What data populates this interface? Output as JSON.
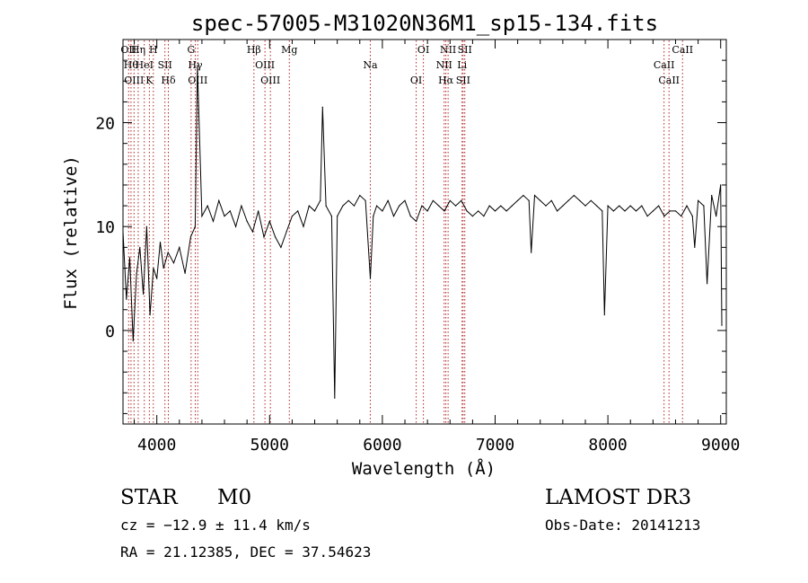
{
  "chart_data": {
    "type": "line",
    "title": "spec-57005-M31020N36M1_sp15-134.fits",
    "xlabel": "Wavelength (Å)",
    "ylabel": "Flux (relative)",
    "xlim": [
      3700,
      9050
    ],
    "ylim": [
      -9,
      28
    ],
    "x_ticks": [
      4000,
      5000,
      6000,
      7000,
      8000,
      9000
    ],
    "y_ticks": [
      0,
      10,
      20
    ],
    "x_tick_labels": [
      "4000",
      "5000",
      "6000",
      "7000",
      "8000",
      "9000"
    ],
    "y_tick_labels": [
      "0",
      "10",
      "20"
    ],
    "grid": false,
    "series": [
      {
        "name": "spectrum",
        "x": [
          3700,
          3730,
          3760,
          3790,
          3820,
          3850,
          3880,
          3910,
          3940,
          3970,
          4000,
          4030,
          4060,
          4100,
          4150,
          4200,
          4250,
          4300,
          4340,
          4360,
          4400,
          4450,
          4500,
          4550,
          4600,
          4650,
          4700,
          4750,
          4800,
          4850,
          4900,
          4950,
          5000,
          5050,
          5100,
          5150,
          5200,
          5250,
          5300,
          5350,
          5400,
          5450,
          5470,
          5500,
          5550,
          5577,
          5600,
          5650,
          5700,
          5750,
          5800,
          5850,
          5893,
          5920,
          5950,
          6000,
          6050,
          6100,
          6150,
          6200,
          6250,
          6300,
          6350,
          6400,
          6450,
          6500,
          6550,
          6600,
          6650,
          6700,
          6750,
          6800,
          6850,
          6900,
          6950,
          7000,
          7050,
          7100,
          7150,
          7200,
          7250,
          7300,
          7320,
          7350,
          7400,
          7450,
          7500,
          7550,
          7600,
          7650,
          7700,
          7750,
          7800,
          7850,
          7900,
          7950,
          7970,
          8000,
          8050,
          8100,
          8150,
          8200,
          8250,
          8300,
          8350,
          8400,
          8450,
          8500,
          8550,
          8600,
          8650,
          8700,
          8750,
          8770,
          8800,
          8850,
          8880,
          8920,
          8960,
          9000,
          9010
        ],
        "y": [
          9.5,
          3.0,
          7.0,
          -1.0,
          5.5,
          8.0,
          3.5,
          10.0,
          1.5,
          6.0,
          5.0,
          8.5,
          6.0,
          7.5,
          6.5,
          8.0,
          5.5,
          9.0,
          10.0,
          25.5,
          11.0,
          12.0,
          10.5,
          12.5,
          11.0,
          11.5,
          10.0,
          12.0,
          10.5,
          9.5,
          11.5,
          9.0,
          10.5,
          9.0,
          8.0,
          9.5,
          11.0,
          11.5,
          10.0,
          12.0,
          11.5,
          12.5,
          21.5,
          12.0,
          11.0,
          -6.5,
          11.0,
          12.0,
          12.5,
          12.0,
          13.0,
          12.5,
          5.0,
          11.0,
          12.0,
          11.5,
          12.5,
          11.0,
          12.0,
          12.5,
          11.0,
          10.5,
          12.0,
          11.5,
          12.5,
          12.0,
          11.5,
          12.5,
          12.0,
          12.5,
          11.5,
          11.0,
          11.5,
          11.0,
          12.0,
          11.5,
          12.0,
          11.5,
          12.0,
          12.5,
          13.0,
          12.5,
          7.5,
          13.0,
          12.5,
          12.0,
          12.5,
          11.5,
          12.0,
          12.5,
          13.0,
          12.5,
          12.0,
          12.5,
          12.0,
          11.5,
          1.5,
          12.0,
          11.5,
          12.0,
          11.5,
          12.0,
          11.5,
          12.0,
          11.0,
          11.5,
          12.0,
          11.0,
          11.5,
          11.5,
          11.0,
          12.0,
          11.0,
          8.0,
          12.5,
          12.0,
          4.5,
          13.0,
          11.0,
          14.0,
          0.5
        ]
      }
    ],
    "lines": [
      {
        "x": 3750,
        "label": "OII"
      },
      {
        "x": 3771,
        "label": "Hθ"
      },
      {
        "x": 3798,
        "label": "OIII"
      },
      {
        "x": 3835,
        "label": "Hη"
      },
      {
        "x": 3889,
        "label": "HeI"
      },
      {
        "x": 3934,
        "label": "K"
      },
      {
        "x": 3969,
        "label": "H"
      },
      {
        "x": 4072,
        "label": "SII"
      },
      {
        "x": 4102,
        "label": "Hδ"
      },
      {
        "x": 4304,
        "label": "G"
      },
      {
        "x": 4341,
        "label": "Hγ"
      },
      {
        "x": 4363,
        "label": "OIII"
      },
      {
        "x": 4861,
        "label": "Hβ"
      },
      {
        "x": 4959,
        "label": "OIII"
      },
      {
        "x": 5007,
        "label": "OIII"
      },
      {
        "x": 5175,
        "label": "Mg"
      },
      {
        "x": 5893,
        "label": "Na"
      },
      {
        "x": 6300,
        "label": "OI"
      },
      {
        "x": 6364,
        "label": "OI"
      },
      {
        "x": 6548,
        "label": "NII"
      },
      {
        "x": 6563,
        "label": "Hα"
      },
      {
        "x": 6583,
        "label": "NII"
      },
      {
        "x": 6707,
        "label": "Li"
      },
      {
        "x": 6716,
        "label": "SII"
      },
      {
        "x": 6731,
        "label": "SII"
      },
      {
        "x": 8498,
        "label": "CaII"
      },
      {
        "x": 8542,
        "label": "CaII"
      },
      {
        "x": 8662,
        "label": "CaII"
      }
    ]
  },
  "info": {
    "class": "STAR",
    "subclass": "M0",
    "survey": "LAMOST DR3",
    "cz": "cz = −12.9 ± 11.4 km/s",
    "obs_date": "Obs-Date: 20141213",
    "coords": "RA =  21.12385, DEC =  37.54623"
  }
}
